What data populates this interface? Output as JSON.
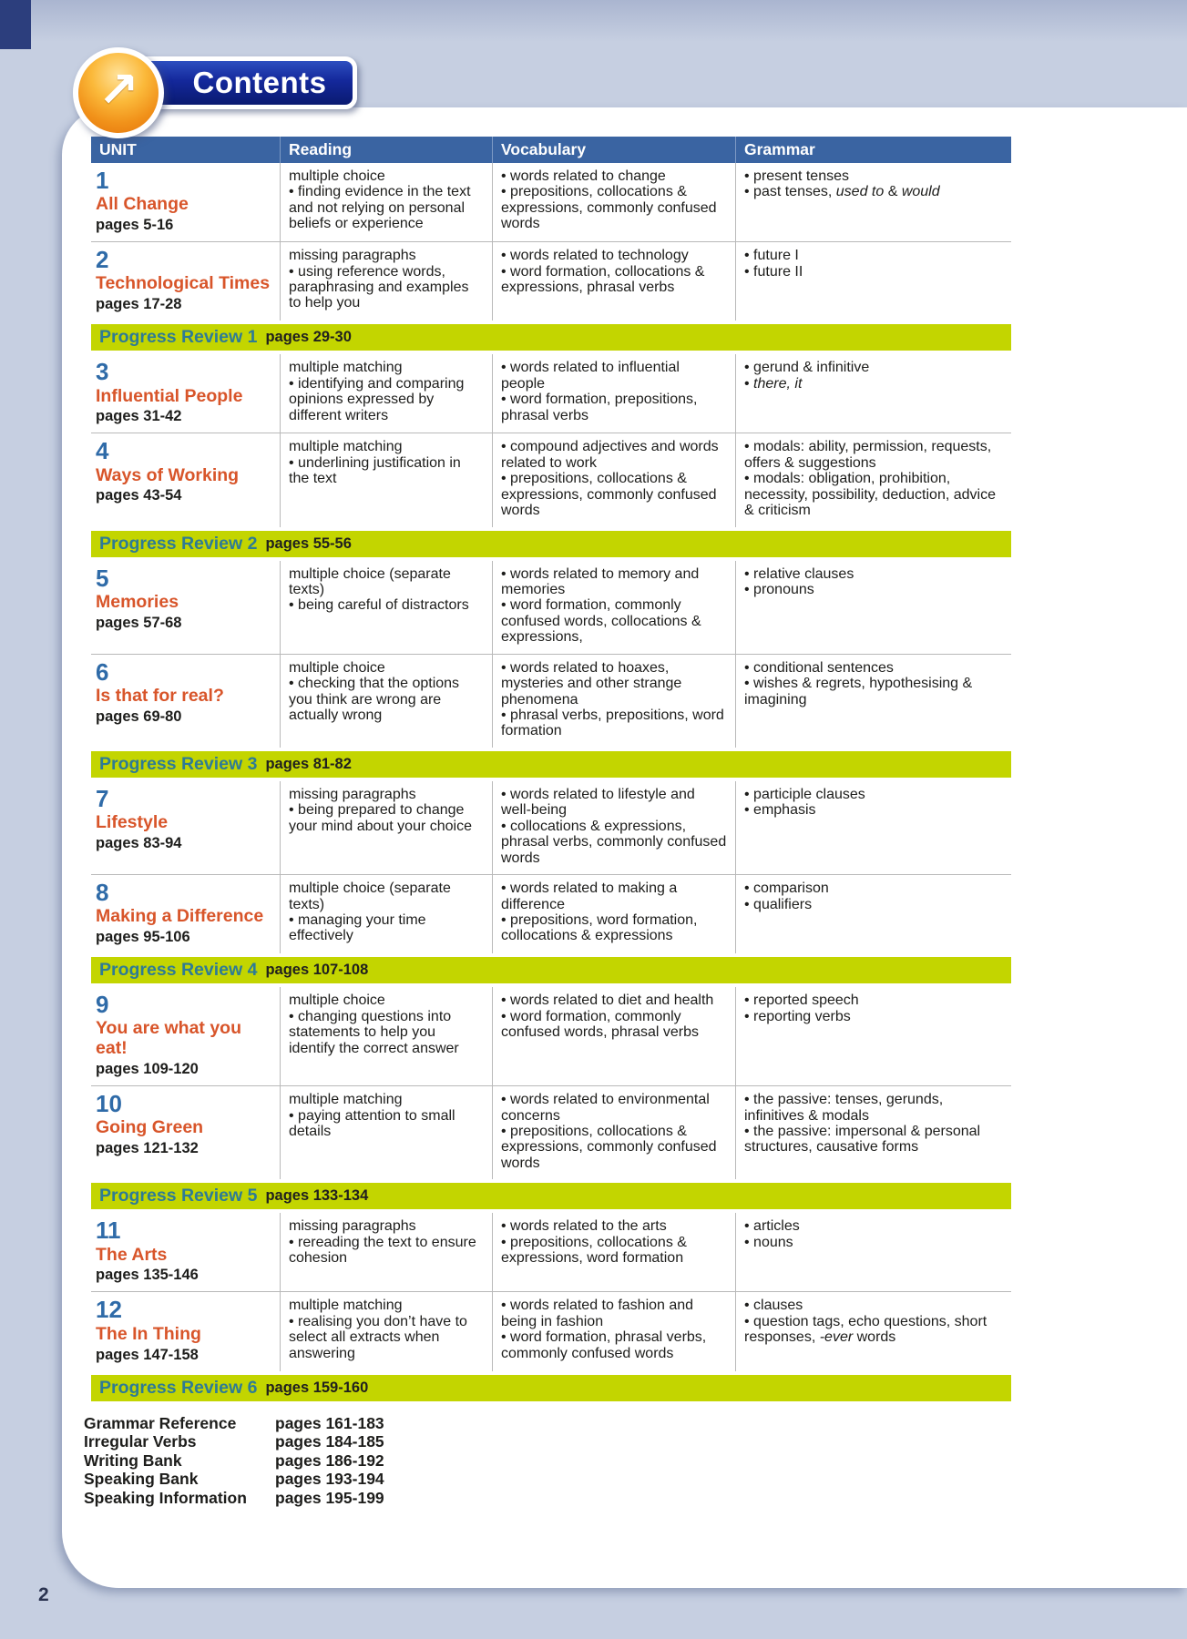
{
  "page": {
    "page_number": "2"
  },
  "banner": {
    "title": "Contents",
    "icon_glyph": "↗"
  },
  "colors": {
    "page_background": "#c6cfe1",
    "header_bar_blue": "#3a64a2",
    "progress_review_green": "#c3d500",
    "progress_review_label_teal": "#2e7b95",
    "unit_number_blue": "#2f6ba8",
    "unit_title_orange": "#d8552a",
    "banner_pill_navy": "#14289b",
    "banner_ball_orange": "#f1921a"
  },
  "table": {
    "headers": [
      "UNIT",
      "Reading",
      "Vocabulary",
      "Grammar"
    ],
    "rows": [
      {
        "type": "unit",
        "number": "1",
        "title": "All Change",
        "pages": "pages 5-16",
        "reading": {
          "lead": "multiple choice",
          "points": [
            "finding evidence in the text and not relying on personal beliefs or experience"
          ]
        },
        "vocabulary": [
          "words related to change",
          "prepositions, collocations & expressions, commonly confused words"
        ],
        "grammar": [
          "present tenses",
          "past tenses, *used to* & *would*"
        ]
      },
      {
        "type": "unit",
        "number": "2",
        "title": "Technological Times",
        "pages": "pages 17-28",
        "reading": {
          "lead": "missing paragraphs",
          "points": [
            "using reference words, paraphrasing and examples to help you"
          ]
        },
        "vocabulary": [
          "words related to technology",
          "word formation, collocations & expressions, phrasal verbs"
        ],
        "grammar": [
          "future I",
          "future II"
        ]
      },
      {
        "type": "review",
        "label": "Progress Review 1",
        "pages": "pages 29-30"
      },
      {
        "type": "unit",
        "number": "3",
        "title": "Influential People",
        "pages": "pages 31-42",
        "reading": {
          "lead": "multiple matching",
          "points": [
            "identifying and comparing opinions expressed by different writers"
          ]
        },
        "vocabulary": [
          "words related to influential people",
          "word formation, prepositions, phrasal verbs"
        ],
        "grammar": [
          "gerund & infinitive",
          "*there, it*"
        ]
      },
      {
        "type": "unit",
        "number": "4",
        "title": "Ways of Working",
        "pages": "pages 43-54",
        "reading": {
          "lead": "multiple matching",
          "points": [
            "underlining justification in the text"
          ]
        },
        "vocabulary": [
          "compound adjectives and words related to work",
          "prepositions, collocations & expressions, commonly confused words"
        ],
        "grammar": [
          "modals: ability, permission, requests, offers & suggestions",
          "modals: obligation, prohibition, necessity, possibility, deduction, advice & criticism"
        ]
      },
      {
        "type": "review",
        "label": "Progress Review 2",
        "pages": "pages 55-56"
      },
      {
        "type": "unit",
        "number": "5",
        "title": "Memories",
        "pages": "pages 57-68",
        "reading": {
          "lead": "multiple choice (separate texts)",
          "points": [
            "being careful of distractors"
          ]
        },
        "vocabulary": [
          "words related to memory and memories",
          "word formation, commonly confused words, collocations & expressions,"
        ],
        "grammar": [
          "relative clauses",
          "pronouns"
        ]
      },
      {
        "type": "unit",
        "number": "6",
        "title": "Is that for real?",
        "pages": "pages 69-80",
        "reading": {
          "lead": "multiple choice",
          "points": [
            "checking that the options you think are wrong are actually wrong"
          ]
        },
        "vocabulary": [
          "words related to hoaxes, mysteries and other strange phenomena",
          "phrasal verbs, prepositions, word formation"
        ],
        "grammar": [
          "conditional sentences",
          "wishes & regrets, hypothesising & imagining"
        ]
      },
      {
        "type": "review",
        "label": "Progress Review 3",
        "pages": "pages 81-82"
      },
      {
        "type": "unit",
        "number": "7",
        "title": "Lifestyle",
        "pages": "pages 83-94",
        "reading": {
          "lead": "missing paragraphs",
          "points": [
            "being prepared to change your mind about your choice"
          ]
        },
        "vocabulary": [
          "words related to lifestyle and well-being",
          "collocations & expressions, phrasal verbs, commonly confused words"
        ],
        "grammar": [
          "participle clauses",
          "emphasis"
        ]
      },
      {
        "type": "unit",
        "number": "8",
        "title": "Making a Difference",
        "pages": "pages 95-106",
        "reading": {
          "lead": "multiple choice (separate texts)",
          "points": [
            "managing your time effectively"
          ]
        },
        "vocabulary": [
          "words related to making a difference",
          "prepositions, word formation, collocations & expressions"
        ],
        "grammar": [
          "comparison",
          "qualifiers"
        ]
      },
      {
        "type": "review",
        "label": "Progress Review 4",
        "pages": "pages 107-108"
      },
      {
        "type": "unit",
        "number": "9",
        "title": "You are what you eat!",
        "pages": "pages 109-120",
        "reading": {
          "lead": "multiple choice",
          "points": [
            "changing questions into statements to help you identify the correct answer"
          ]
        },
        "vocabulary": [
          "words related to diet and health",
          "word formation, commonly confused words, phrasal verbs"
        ],
        "grammar": [
          "reported speech",
          "reporting verbs"
        ]
      },
      {
        "type": "unit",
        "number": "10",
        "title": "Going Green",
        "pages": "pages 121-132",
        "reading": {
          "lead": "multiple matching",
          "points": [
            "paying attention to small details"
          ]
        },
        "vocabulary": [
          "words related to environmental concerns",
          "prepositions, collocations & expressions, commonly confused words"
        ],
        "grammar": [
          "the passive: tenses, gerunds, infinitives & modals",
          "the passive: impersonal & personal structures, causative forms"
        ]
      },
      {
        "type": "review",
        "label": "Progress Review 5",
        "pages": "pages 133-134"
      },
      {
        "type": "unit",
        "number": "11",
        "title": "The Arts",
        "pages": "pages 135-146",
        "reading": {
          "lead": "missing paragraphs",
          "points": [
            "rereading the text to ensure cohesion"
          ]
        },
        "vocabulary": [
          "words related to the arts",
          "prepositions, collocations & expressions, word formation"
        ],
        "grammar": [
          "articles",
          "nouns"
        ]
      },
      {
        "type": "unit",
        "number": "12",
        "title": "The In Thing",
        "pages": "pages 147-158",
        "reading": {
          "lead": "multiple matching",
          "points": [
            "realising you don’t have to select all extracts when answering"
          ]
        },
        "vocabulary": [
          "words related to fashion and being in fashion",
          "word formation, phrasal verbs, commonly confused words"
        ],
        "grammar": [
          "clauses",
          "question tags, echo questions, short responses, *-ever* words"
        ]
      },
      {
        "type": "review",
        "label": "Progress Review 6",
        "pages": "pages 159-160"
      }
    ]
  },
  "back_matter": [
    {
      "label": "Grammar Reference",
      "pages": "pages 161-183"
    },
    {
      "label": "Irregular Verbs",
      "pages": "pages 184-185"
    },
    {
      "label": "Writing Bank",
      "pages": "pages 186-192"
    },
    {
      "label": "Speaking Bank",
      "pages": "pages 193-194"
    },
    {
      "label": "Speaking Information",
      "pages": "pages 195-199"
    }
  ]
}
